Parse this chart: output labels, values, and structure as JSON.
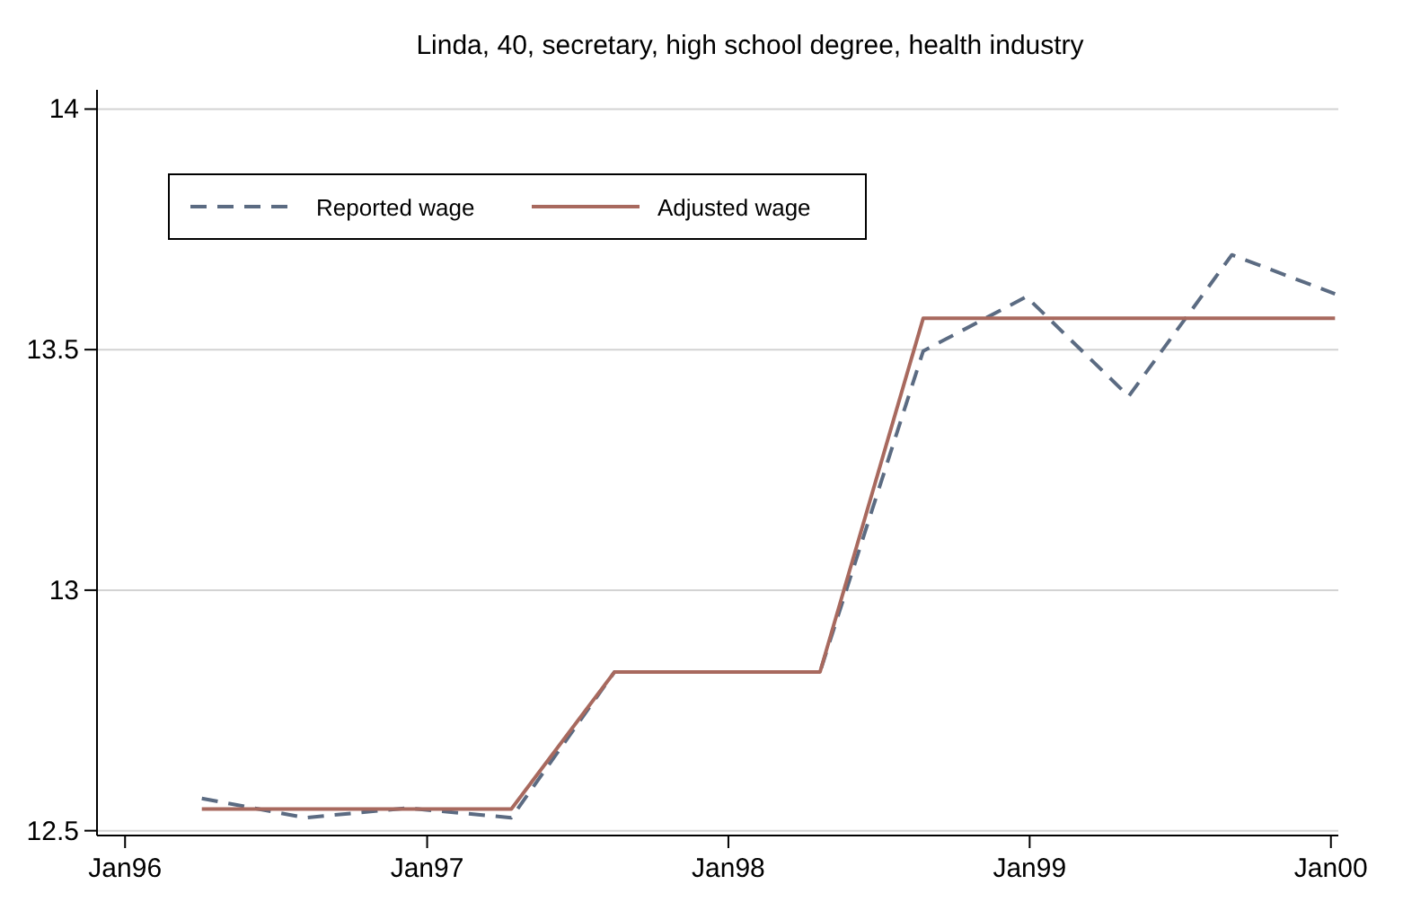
{
  "chart_data": {
    "type": "line",
    "title": "Linda, 40, secretary, high school degree, health industry",
    "x": [
      "1996-04-03",
      "1996-08-06",
      "1996-12-08",
      "1997-04-13",
      "1997-08-16",
      "1997-12-18",
      "1998-04-22",
      "1998-08-25",
      "1998-12-28",
      "1999-05-01",
      "1999-09-03",
      "2000-01-06"
    ],
    "series": [
      {
        "name": "Reported wage",
        "color": "#5b6b82",
        "line_style": "dashed",
        "values": [
          12.567,
          12.527,
          12.547,
          12.527,
          12.83,
          12.83,
          12.83,
          13.497,
          13.61,
          13.403,
          13.697,
          13.616
        ]
      },
      {
        "name": "Adjusted wage",
        "color": "#a8695e",
        "line_style": "solid",
        "values": [
          12.545,
          12.545,
          12.545,
          12.545,
          12.83,
          12.83,
          12.83,
          13.565,
          13.565,
          13.565,
          13.565,
          13.565
        ]
      }
    ],
    "xlim": [
      "1995-11-28",
      "2000-01-10"
    ],
    "xticks": [
      {
        "value": "1996-01-01",
        "label": "Jan96"
      },
      {
        "value": "1997-01-01",
        "label": "Jan97"
      },
      {
        "value": "1998-01-01",
        "label": "Jan98"
      },
      {
        "value": "1999-01-01",
        "label": "Jan99"
      },
      {
        "value": "2000-01-01",
        "label": "Jan00"
      }
    ],
    "ylim": [
      12.49,
      14.04
    ],
    "yticks": [
      12.5,
      13,
      13.5,
      14
    ],
    "grid": "y",
    "legend": "top left"
  }
}
